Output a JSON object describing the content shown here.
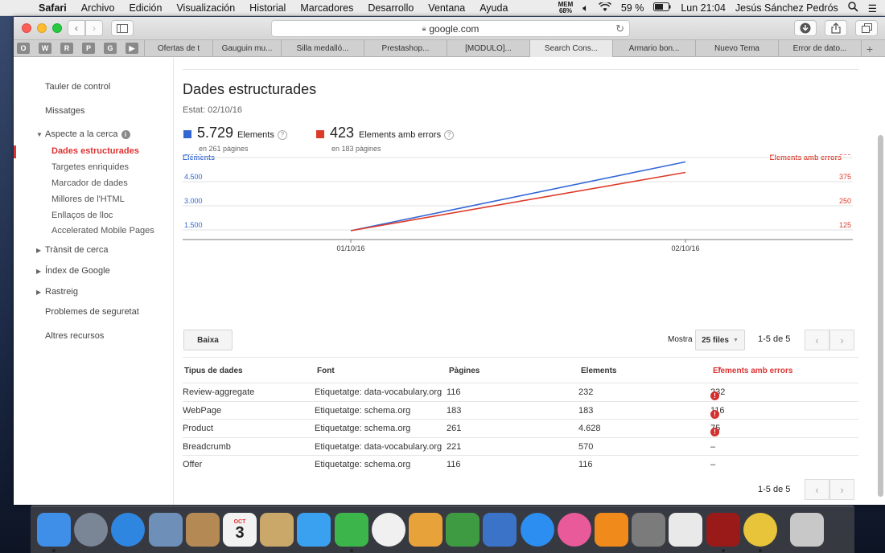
{
  "menubar": {
    "app": "Safari",
    "items": [
      "Archivo",
      "Edición",
      "Visualización",
      "Historial",
      "Marcadores",
      "Desarrollo",
      "Ventana",
      "Ayuda"
    ],
    "mem_label": "MEM",
    "mem_value": "68%",
    "battery": "59 %",
    "clock": "Lun 21:04",
    "user": "Jesús Sánchez Pedrós"
  },
  "browser": {
    "url": "google.com",
    "favicons": [
      "O",
      "W",
      "R",
      "P",
      "G",
      "▶"
    ],
    "tabs": [
      "Ofertas de t",
      "Gauguin mu...",
      "Silla medalló...",
      "Prestashop...",
      "[MODULO]...",
      "Search Cons...",
      "Armario bon...",
      "Nuevo Tema",
      "Error de dato..."
    ],
    "active_tab_index": 5
  },
  "sidebar": {
    "items": [
      {
        "label": "Tauler de control"
      },
      {
        "label": "Missatges"
      },
      {
        "label": "Aspecte a la cerca"
      },
      {
        "label": "Trànsit de cerca"
      },
      {
        "label": "Índex de Google"
      },
      {
        "label": "Rastreig"
      },
      {
        "label": "Problemes de seguretat"
      },
      {
        "label": "Altres recursos"
      }
    ],
    "subitems": [
      {
        "label": "Dades estructurades"
      },
      {
        "label": "Targetes enriquides"
      },
      {
        "label": "Marcador de dades"
      },
      {
        "label": "Millores de l'HTML"
      },
      {
        "label": "Enllaços de lloc"
      },
      {
        "label": "Accelerated Mobile Pages"
      }
    ],
    "info_glyph": "i"
  },
  "main": {
    "title": "Dades estructurades",
    "status": "Estat: 02/10/16",
    "kpi_items": {
      "value": "5.729",
      "label": "Elements",
      "sub": "en 261 pàgines",
      "color": "#3367d6"
    },
    "kpi_errors": {
      "value": "423",
      "label": "Elements amb errors",
      "sub": "en 183 pàgines",
      "color": "#dd3b2a"
    },
    "download_label": "Baixa",
    "show_label": "Mostra",
    "rows_select": "25 files",
    "pagination": "1-5 de 5",
    "table": {
      "headers": [
        "Tipus de dades",
        "Font",
        "Pàgines",
        "Elements",
        "Elements amb errors"
      ],
      "rows": [
        {
          "type": "Review-aggregate",
          "source": "Etiquetatge: data-vocabulary.org",
          "pages": "116",
          "items": "232",
          "errors": "232",
          "has_error": true
        },
        {
          "type": "WebPage",
          "source": "Etiquetatge: schema.org",
          "pages": "183",
          "items": "183",
          "errors": "116",
          "has_error": true
        },
        {
          "type": "Product",
          "source": "Etiquetatge: schema.org",
          "pages": "261",
          "items": "4.628",
          "errors": "75",
          "has_error": true
        },
        {
          "type": "Breadcrumb",
          "source": "Etiquetatge: data-vocabulary.org",
          "pages": "221",
          "items": "570",
          "errors": "–",
          "has_error": false
        },
        {
          "type": "Offer",
          "source": "Etiquetatge: schema.org",
          "pages": "116",
          "items": "116",
          "errors": "–",
          "has_error": false
        }
      ]
    }
  },
  "chart_data": {
    "type": "line",
    "x": [
      "01/10/16",
      "02/10/16"
    ],
    "series": [
      {
        "name": "Elements",
        "axis": "left",
        "color": "#3367d6",
        "values": [
          0,
          5729
        ]
      },
      {
        "name": "Elements amb errors",
        "axis": "right",
        "color": "#dd3b2a",
        "values": [
          0,
          423
        ]
      }
    ],
    "left_axis": {
      "label": "Elements",
      "ticks": [
        "1.500",
        "3.000",
        "4.500",
        "6.000"
      ],
      "range": [
        0,
        7500
      ]
    },
    "right_axis": {
      "label": "Elements amb errors",
      "ticks": [
        "125",
        "250",
        "375",
        "500"
      ],
      "range": [
        0,
        625
      ]
    },
    "grid": true
  },
  "dock": {
    "apps": [
      {
        "name": "finder",
        "color": "#3f8ee8"
      },
      {
        "name": "launchpad",
        "color": "#7a8596"
      },
      {
        "name": "safari",
        "color": "#2f86e0"
      },
      {
        "name": "mail",
        "color": "#6e8fb8"
      },
      {
        "name": "contacts",
        "color": "#b48953"
      },
      {
        "name": "calendar",
        "color": "#f2f2f2",
        "text": "3",
        "subtext": "OCT"
      },
      {
        "name": "preview",
        "color": "#c9a86a"
      },
      {
        "name": "messages",
        "color": "#3aa0f0"
      },
      {
        "name": "facetime",
        "color": "#3cb54a"
      },
      {
        "name": "photos",
        "color": "#f0f0f0"
      },
      {
        "name": "keynote-image",
        "color": "#e8a23a"
      },
      {
        "name": "numbers",
        "color": "#3e9b42"
      },
      {
        "name": "keynote",
        "color": "#3b73c9"
      },
      {
        "name": "app-store",
        "color": "#2c8ef0"
      },
      {
        "name": "itunes",
        "color": "#e85a9a"
      },
      {
        "name": "ibooks",
        "color": "#f08a1a"
      },
      {
        "name": "system-preferences",
        "color": "#7b7b7b"
      },
      {
        "name": "textedit",
        "color": "#e9e9e9"
      },
      {
        "name": "acrobat",
        "color": "#9a1a1a"
      },
      {
        "name": "chrome",
        "color": "#e8c43a"
      },
      {
        "name": "trash",
        "color": "#c8c8c8"
      }
    ]
  }
}
